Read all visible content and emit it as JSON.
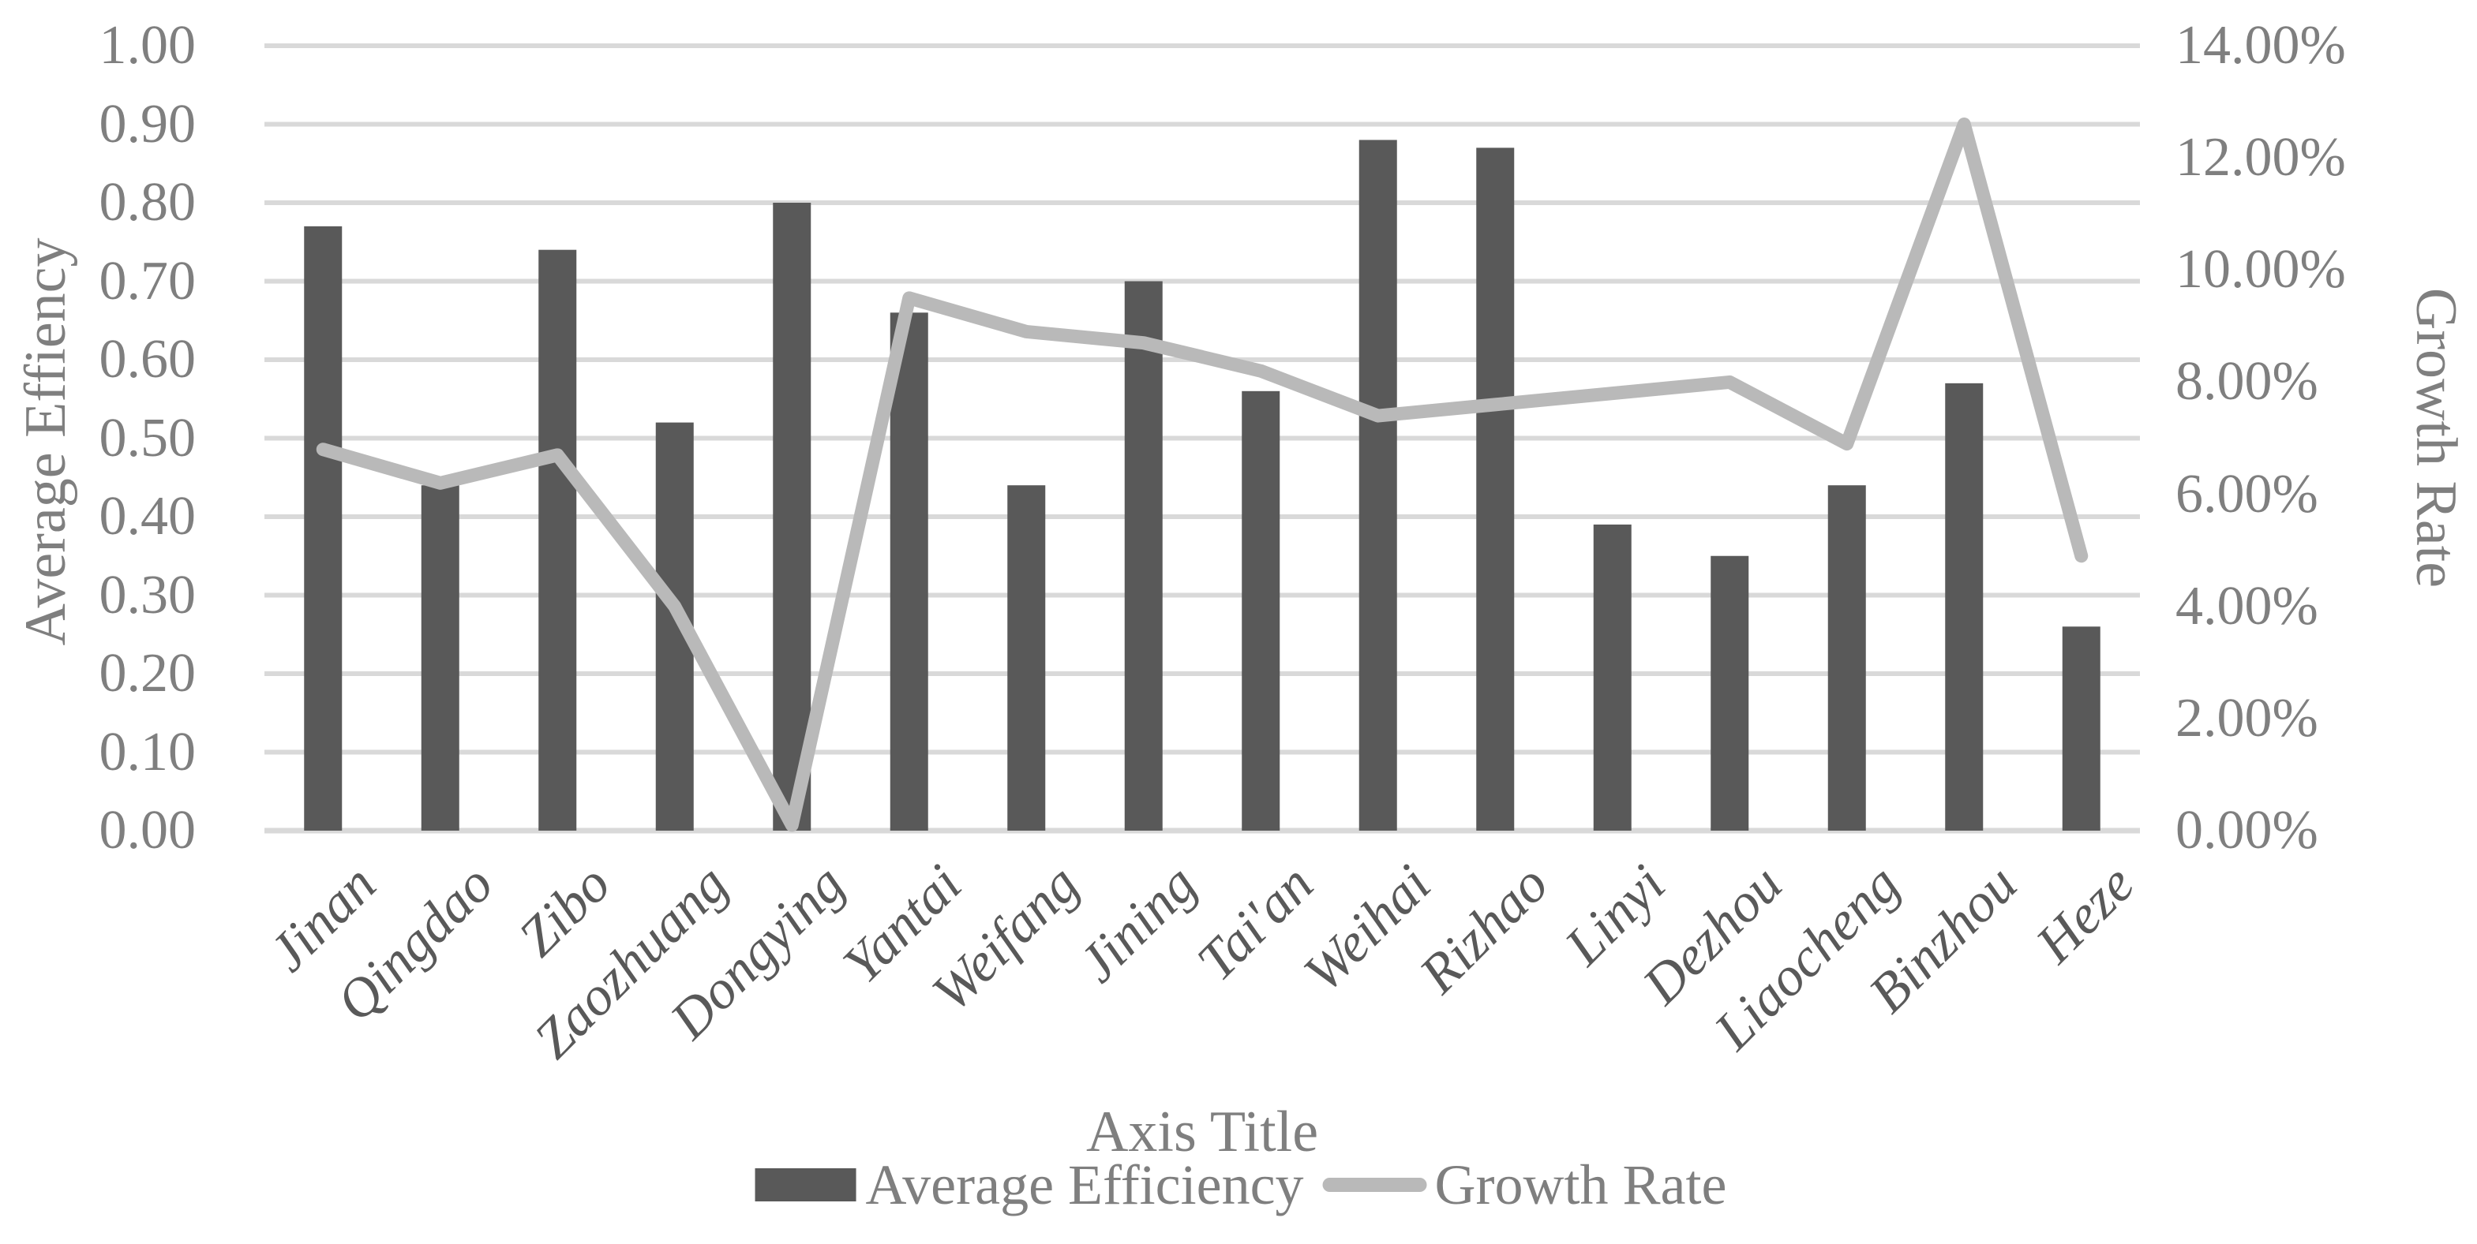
{
  "axes": {
    "left": {
      "title": "Average Effiency",
      "ticks": [
        "1.00",
        "0.90",
        "0.80",
        "0.70",
        "0.60",
        "0.50",
        "0.40",
        "0.30",
        "0.20",
        "0.10",
        "0.00"
      ]
    },
    "right": {
      "title": "Growth Rate",
      "ticks": [
        "14.00%",
        "12.00%",
        "10.00%",
        "8.00%",
        "6.00%",
        "4.00%",
        "2.00%",
        "0.00%"
      ]
    },
    "x": {
      "title": "Axis Title"
    }
  },
  "legend": {
    "items": [
      {
        "label": "Average Efficiency",
        "swatch": "bar"
      },
      {
        "label": "Growth Rate",
        "swatch": "line"
      }
    ]
  },
  "colors": {
    "bar": "#595959",
    "line": "#b9b9b9",
    "gridline": "#d9d9d9",
    "tick_text": "#7f7f7f",
    "category_text": "#595959"
  },
  "chart_data": {
    "type": "combo bar+line, dual axis",
    "categories": [
      "Jinan",
      "Qingdao",
      "Zibo",
      "Zaozhuang",
      "Dongying",
      "Yantai",
      "Weifang",
      "Jining",
      "Tai'an",
      "Weihai",
      "Rizhao",
      "Linyi",
      "Dezhou",
      "Liaocheng",
      "Binzhou",
      "Heze"
    ],
    "series": [
      {
        "name": "Average Efficiency",
        "type": "bar",
        "axis": "left",
        "values": [
          0.77,
          0.44,
          0.74,
          0.52,
          0.8,
          0.66,
          0.44,
          0.7,
          0.56,
          0.88,
          0.87,
          0.39,
          0.35,
          0.44,
          0.57,
          0.26
        ]
      },
      {
        "name": "Growth Rate",
        "type": "line",
        "axis": "right",
        "values": [
          0.068,
          0.062,
          0.067,
          0.04,
          0.001,
          0.095,
          0.089,
          0.087,
          0.082,
          0.074,
          0.076,
          0.078,
          0.08,
          0.069,
          0.126,
          0.049
        ]
      }
    ],
    "left_axis": {
      "label": "Average Effiency",
      "min": 0,
      "max": 1.0,
      "step": 0.1
    },
    "right_axis": {
      "label": "Growth Rate",
      "min": 0,
      "max": 0.14,
      "step": 0.02
    },
    "xlabel": "Axis Title",
    "grid": true,
    "legend_position": "bottom"
  }
}
